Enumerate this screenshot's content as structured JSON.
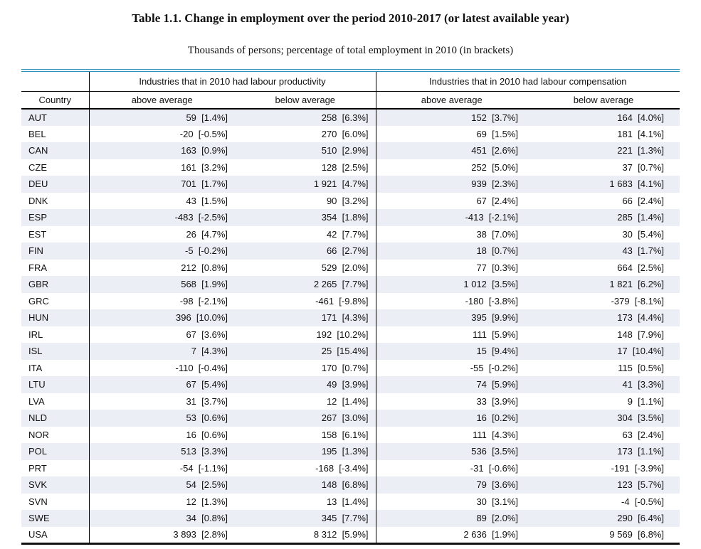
{
  "title": "Table 1.1. Change in employment over the period 2010-2017 (or latest available year)",
  "subtitle": "Thousands of persons; percentage of total employment in 2010 (in brackets)",
  "colors": {
    "accent_line": "#2e8fb4",
    "row_stripe": "#ebeef5"
  },
  "table": {
    "group_headers": [
      "Industries that in 2010 had labour productivity",
      "Industries that in 2010 had labour compensation"
    ],
    "column_headers": [
      "Country",
      "above average",
      "below average",
      "above average",
      "below average"
    ],
    "rows": [
      [
        "AUT",
        "59  [1.4%]",
        "258  [6.3%]",
        "152  [3.7%]",
        "164  [4.0%]"
      ],
      [
        "BEL",
        "-20  [-0.5%]",
        "270  [6.0%]",
        "69  [1.5%]",
        "181  [4.1%]"
      ],
      [
        "CAN",
        "163  [0.9%]",
        "510  [2.9%]",
        "451  [2.6%]",
        "221  [1.3%]"
      ],
      [
        "CZE",
        "161  [3.2%]",
        "128  [2.5%]",
        "252  [5.0%]",
        "37  [0.7%]"
      ],
      [
        "DEU",
        "701  [1.7%]",
        "1 921  [4.7%]",
        "939  [2.3%]",
        "1 683  [4.1%]"
      ],
      [
        "DNK",
        "43  [1.5%]",
        "90  [3.2%]",
        "67  [2.4%]",
        "66  [2.4%]"
      ],
      [
        "ESP",
        "-483  [-2.5%]",
        "354  [1.8%]",
        "-413  [-2.1%]",
        "285  [1.4%]"
      ],
      [
        "EST",
        "26  [4.7%]",
        "42  [7.7%]",
        "38  [7.0%]",
        "30  [5.4%]"
      ],
      [
        "FIN",
        "-5  [-0.2%]",
        "66  [2.7%]",
        "18  [0.7%]",
        "43  [1.7%]"
      ],
      [
        "FRA",
        "212  [0.8%]",
        "529  [2.0%]",
        "77  [0.3%]",
        "664  [2.5%]"
      ],
      [
        "GBR",
        "568  [1.9%]",
        "2 265  [7.7%]",
        "1 012  [3.5%]",
        "1 821  [6.2%]"
      ],
      [
        "GRC",
        "-98  [-2.1%]",
        "-461  [-9.8%]",
        "-180  [-3.8%]",
        "-379  [-8.1%]"
      ],
      [
        "HUN",
        "396  [10.0%]",
        "171  [4.3%]",
        "395  [9.9%]",
        "173  [4.4%]"
      ],
      [
        "IRL",
        "67  [3.6%]",
        "192  [10.2%]",
        "111  [5.9%]",
        "148  [7.9%]"
      ],
      [
        "ISL",
        "7  [4.3%]",
        "25  [15.4%]",
        "15  [9.4%]",
        "17  [10.4%]"
      ],
      [
        "ITA",
        "-110  [-0.4%]",
        "170  [0.7%]",
        "-55  [-0.2%]",
        "115  [0.5%]"
      ],
      [
        "LTU",
        "67  [5.4%]",
        "49  [3.9%]",
        "74  [5.9%]",
        "41  [3.3%]"
      ],
      [
        "LVA",
        "31  [3.7%]",
        "12  [1.4%]",
        "33  [3.9%]",
        "9  [1.1%]"
      ],
      [
        "NLD",
        "53  [0.6%]",
        "267  [3.0%]",
        "16  [0.2%]",
        "304  [3.5%]"
      ],
      [
        "NOR",
        "16  [0.6%]",
        "158  [6.1%]",
        "111  [4.3%]",
        "63  [2.4%]"
      ],
      [
        "POL",
        "513  [3.3%]",
        "195  [1.3%]",
        "536  [3.5%]",
        "173  [1.1%]"
      ],
      [
        "PRT",
        "-54  [-1.1%]",
        "-168  [-3.4%]",
        "-31  [-0.6%]",
        "-191  [-3.9%]"
      ],
      [
        "SVK",
        "54  [2.5%]",
        "148  [6.8%]",
        "79  [3.6%]",
        "123  [5.7%]"
      ],
      [
        "SVN",
        "12  [1.3%]",
        "13  [1.4%]",
        "30  [3.1%]",
        "-4  [-0.5%]"
      ],
      [
        "SWE",
        "34  [0.8%]",
        "345  [7.7%]",
        "89  [2.0%]",
        "290  [6.4%]"
      ],
      [
        "USA",
        "3 893  [2.8%]",
        "8 312  [5.9%]",
        "2 636  [1.9%]",
        "9 569  [6.8%]"
      ]
    ]
  }
}
